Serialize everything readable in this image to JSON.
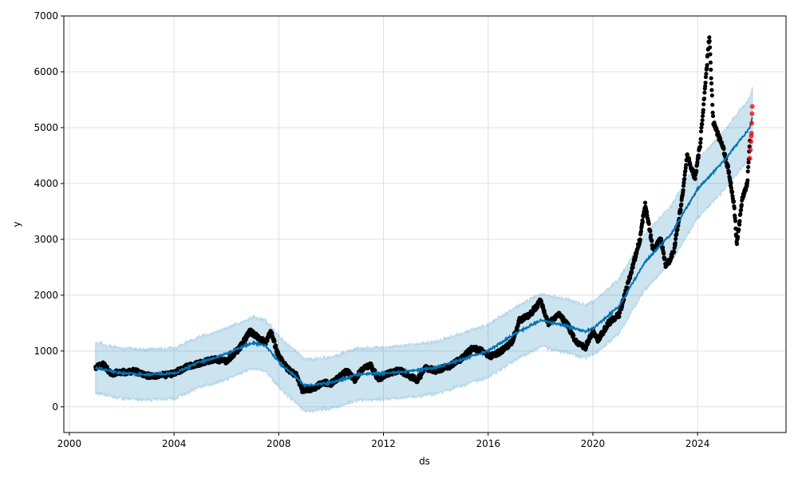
{
  "chart_data": {
    "type": "scatter",
    "title": "",
    "xlabel": "ds",
    "ylabel": "y",
    "xlim": [
      1999.79,
      2027.38
    ],
    "ylim": [
      -460,
      7000
    ],
    "grid": true,
    "x_ticks": [
      {
        "v": 2000,
        "label": "2000"
      },
      {
        "v": 2004,
        "label": "2004"
      },
      {
        "v": 2008,
        "label": "2008"
      },
      {
        "v": 2012,
        "label": "2012"
      },
      {
        "v": 2016,
        "label": "2016"
      },
      {
        "v": 2020,
        "label": "2020"
      },
      {
        "v": 2024,
        "label": "2024"
      }
    ],
    "y_ticks": [
      {
        "v": 0,
        "label": "0"
      },
      {
        "v": 1000,
        "label": "1000"
      },
      {
        "v": 2000,
        "label": "2000"
      },
      {
        "v": 3000,
        "label": "3000"
      },
      {
        "v": 4000,
        "label": "4000"
      },
      {
        "v": 5000,
        "label": "5000"
      },
      {
        "v": 6000,
        "label": "6000"
      },
      {
        "v": 7000,
        "label": "7000"
      }
    ],
    "colors": {
      "actual": "#000000",
      "test": "#ff0000",
      "forecast": "#0072B2",
      "band": "#0072B2"
    },
    "actual": [
      [
        2001.0,
        700
      ],
      [
        2001.3,
        760
      ],
      [
        2001.6,
        600
      ],
      [
        2002.0,
        620
      ],
      [
        2002.5,
        640
      ],
      [
        2003.0,
        560
      ],
      [
        2003.5,
        560
      ],
      [
        2004.0,
        600
      ],
      [
        2004.5,
        720
      ],
      [
        2005.0,
        780
      ],
      [
        2005.5,
        850
      ],
      [
        2006.0,
        820
      ],
      [
        2006.5,
        1050
      ],
      [
        2006.9,
        1350
      ],
      [
        2007.2,
        1250
      ],
      [
        2007.5,
        1150
      ],
      [
        2007.7,
        1350
      ],
      [
        2008.0,
        900
      ],
      [
        2008.3,
        700
      ],
      [
        2008.7,
        550
      ],
      [
        2008.9,
        300
      ],
      [
        2009.3,
        330
      ],
      [
        2009.7,
        430
      ],
      [
        2010.0,
        420
      ],
      [
        2010.3,
        520
      ],
      [
        2010.6,
        650
      ],
      [
        2010.9,
        480
      ],
      [
        2011.2,
        680
      ],
      [
        2011.5,
        750
      ],
      [
        2011.8,
        500
      ],
      [
        2012.2,
        600
      ],
      [
        2012.6,
        660
      ],
      [
        2013.0,
        550
      ],
      [
        2013.3,
        480
      ],
      [
        2013.6,
        700
      ],
      [
        2014.0,
        650
      ],
      [
        2014.5,
        720
      ],
      [
        2015.0,
        870
      ],
      [
        2015.4,
        1050
      ],
      [
        2015.8,
        1000
      ],
      [
        2016.1,
        900
      ],
      [
        2016.5,
        1000
      ],
      [
        2016.9,
        1150
      ],
      [
        2017.2,
        1550
      ],
      [
        2017.6,
        1650
      ],
      [
        2018.0,
        1900
      ],
      [
        2018.3,
        1500
      ],
      [
        2018.7,
        1650
      ],
      [
        2019.0,
        1500
      ],
      [
        2019.3,
        1200
      ],
      [
        2019.7,
        1050
      ],
      [
        2020.0,
        1350
      ],
      [
        2020.2,
        1200
      ],
      [
        2020.6,
        1500
      ],
      [
        2021.0,
        1650
      ],
      [
        2021.4,
        2300
      ],
      [
        2021.8,
        3000
      ],
      [
        2022.0,
        3650
      ],
      [
        2022.3,
        2800
      ],
      [
        2022.6,
        3000
      ],
      [
        2022.8,
        2500
      ],
      [
        2023.1,
        2800
      ],
      [
        2023.4,
        3700
      ],
      [
        2023.6,
        4500
      ],
      [
        2023.9,
        4100
      ],
      [
        2024.1,
        4700
      ],
      [
        2024.3,
        5800
      ],
      [
        2024.45,
        6650
      ],
      [
        2024.6,
        5100
      ],
      [
        2025.0,
        4600
      ],
      [
        2025.2,
        4200
      ],
      [
        2025.4,
        3600
      ],
      [
        2025.5,
        2900
      ],
      [
        2025.7,
        3700
      ],
      [
        2025.9,
        4000
      ],
      [
        2026.0,
        4800
      ]
    ],
    "test": [
      [
        2026.0,
        4450
      ],
      [
        2026.02,
        4600
      ],
      [
        2026.04,
        4750
      ],
      [
        2026.05,
        4850
      ],
      [
        2026.06,
        4900
      ],
      [
        2026.07,
        5080
      ],
      [
        2026.08,
        5250
      ],
      [
        2026.09,
        5380
      ]
    ],
    "forecast": [
      [
        2001,
        700
      ],
      [
        2002,
        600
      ],
      [
        2003,
        580
      ],
      [
        2004,
        600
      ],
      [
        2005,
        800
      ],
      [
        2006,
        950
      ],
      [
        2007,
        1150
      ],
      [
        2007.5,
        1100
      ],
      [
        2008,
        800
      ],
      [
        2008.5,
        600
      ],
      [
        2009,
        380
      ],
      [
        2010,
        430
      ],
      [
        2011,
        580
      ],
      [
        2012,
        600
      ],
      [
        2013,
        640
      ],
      [
        2014,
        700
      ],
      [
        2015,
        850
      ],
      [
        2016,
        1000
      ],
      [
        2017,
        1300
      ],
      [
        2018,
        1550
      ],
      [
        2019,
        1450
      ],
      [
        2019.7,
        1350
      ],
      [
        2020,
        1400
      ],
      [
        2021,
        1800
      ],
      [
        2022,
        2600
      ],
      [
        2023,
        3100
      ],
      [
        2024,
        3900
      ],
      [
        2025,
        4400
      ],
      [
        2026,
        5000
      ],
      [
        2026.1,
        5200
      ]
    ],
    "band_halfwidth": [
      [
        2001,
        450
      ],
      [
        2020,
        480
      ],
      [
        2026.1,
        540
      ]
    ]
  }
}
